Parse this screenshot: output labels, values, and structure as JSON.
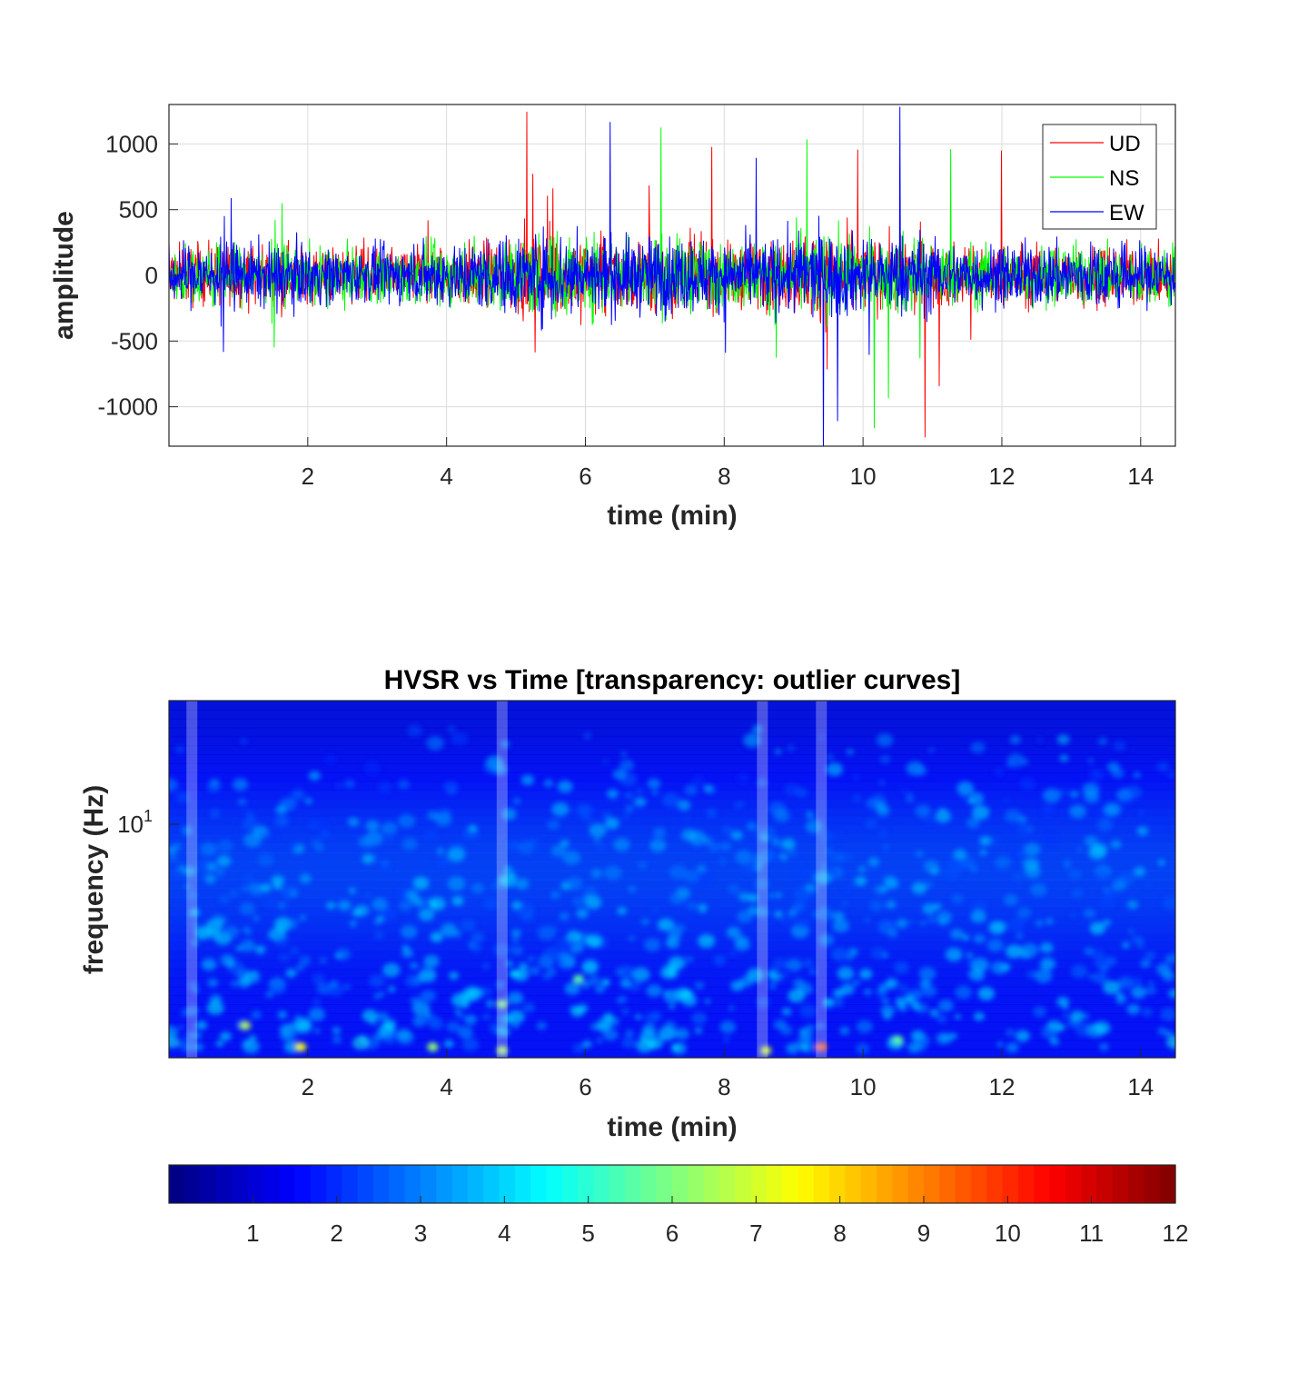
{
  "chart_data": [
    {
      "type": "line",
      "xlabel": "time (min)",
      "ylabel": "amplitude",
      "xlim": [
        0,
        14.5
      ],
      "ylim": [
        -1300,
        1300
      ],
      "xticks": [
        2,
        4,
        6,
        8,
        10,
        12,
        14
      ],
      "yticks": [
        -1000,
        -500,
        0,
        500,
        1000
      ],
      "grid": true,
      "legend": "top-right",
      "series": [
        {
          "name": "UD",
          "color": "#ff0000"
        },
        {
          "name": "NS",
          "color": "#00ff00"
        },
        {
          "name": "EW",
          "color": "#0000ff"
        }
      ]
    },
    {
      "type": "heatmap",
      "title": "HVSR vs Time [transparency: outlier curves]",
      "xlabel": "time (min)",
      "ylabel": "frequency (Hz)",
      "xlim": [
        0,
        14.5
      ],
      "xticks": [
        2,
        4,
        6,
        8,
        10,
        12,
        14
      ],
      "yscale": "log",
      "ytick_base": "10",
      "ytick_exp": "1",
      "outlier_curve_times_min": [
        0.33,
        4.8,
        8.55,
        9.4
      ],
      "colormap": "jet",
      "colorbar_range": [
        0,
        12
      ],
      "colorbar_ticks": [
        "1",
        "2",
        "3",
        "4",
        "5",
        "6",
        "7",
        "8",
        "9",
        "10",
        "11",
        "12"
      ]
    }
  ]
}
